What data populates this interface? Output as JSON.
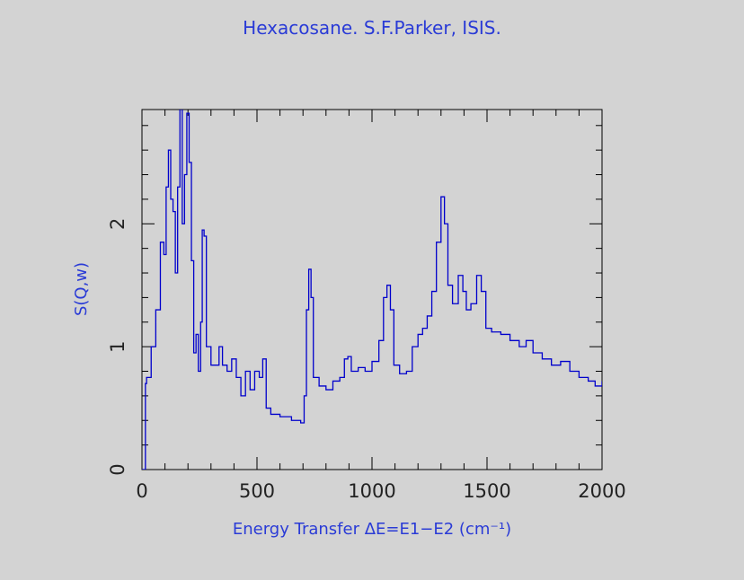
{
  "chart_data": {
    "type": "step",
    "title": "Hexacosane. S.F.Parker, ISIS.",
    "x_label": "Energy Transfer ΔE=E1−E2 (cm⁻¹)",
    "y_label": "S(Q,w)",
    "color": "#0000cc",
    "xlim": [
      0,
      2000
    ],
    "ylim": [
      0,
      2.93
    ],
    "xticks": [
      0,
      500,
      1000,
      1500,
      2000
    ],
    "yticks": [
      0,
      1,
      2
    ],
    "x": [
      0,
      10,
      15,
      20,
      40,
      60,
      80,
      95,
      105,
      115,
      125,
      135,
      145,
      155,
      165,
      175,
      185,
      195,
      205,
      215,
      225,
      235,
      245,
      255,
      262,
      270,
      280,
      300,
      320,
      335,
      350,
      370,
      390,
      410,
      430,
      450,
      470,
      490,
      510,
      525,
      540,
      560,
      600,
      650,
      690,
      705,
      715,
      725,
      735,
      745,
      770,
      800,
      830,
      860,
      880,
      895,
      910,
      940,
      970,
      1000,
      1030,
      1050,
      1065,
      1080,
      1095,
      1120,
      1150,
      1175,
      1200,
      1220,
      1240,
      1260,
      1280,
      1300,
      1315,
      1330,
      1350,
      1375,
      1395,
      1410,
      1430,
      1455,
      1475,
      1495,
      1520,
      1560,
      1600,
      1640,
      1670,
      1700,
      1740,
      1780,
      1820,
      1860,
      1900,
      1940,
      1970,
      2000
    ],
    "series": [
      {
        "name": "S(Q,w)",
        "color": "#0000cc",
        "values": [
          0,
          0,
          0.7,
          0.75,
          1.0,
          1.3,
          1.85,
          1.75,
          2.3,
          2.6,
          2.2,
          2.1,
          1.6,
          2.3,
          2.95,
          2.0,
          2.4,
          2.9,
          2.5,
          1.7,
          0.95,
          1.1,
          0.8,
          1.2,
          1.95,
          1.9,
          1.0,
          0.85,
          0.85,
          1.0,
          0.85,
          0.8,
          0.9,
          0.75,
          0.6,
          0.8,
          0.65,
          0.8,
          0.75,
          0.9,
          0.5,
          0.45,
          0.43,
          0.4,
          0.38,
          0.6,
          1.3,
          1.63,
          1.4,
          0.75,
          0.68,
          0.65,
          0.72,
          0.75,
          0.9,
          0.92,
          0.8,
          0.83,
          0.8,
          0.88,
          1.05,
          1.4,
          1.5,
          1.3,
          0.85,
          0.78,
          0.8,
          1.0,
          1.1,
          1.15,
          1.25,
          1.45,
          1.85,
          2.22,
          2.0,
          1.5,
          1.35,
          1.58,
          1.45,
          1.3,
          1.35,
          1.58,
          1.45,
          1.15,
          1.12,
          1.1,
          1.05,
          1.0,
          1.05,
          0.95,
          0.9,
          0.85,
          0.88,
          0.8,
          0.75,
          0.72,
          0.68,
          0.72
        ]
      }
    ]
  }
}
